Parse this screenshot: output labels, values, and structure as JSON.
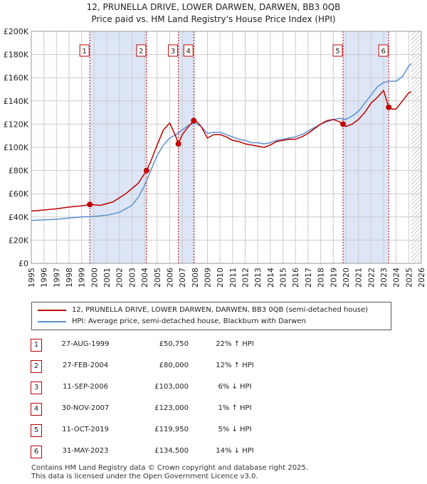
{
  "title_line1": "12, PRUNELLA DRIVE, LOWER DARWEN, DARWEN, BB3 0QB",
  "title_line2": "Price paid vs. HM Land Registry's House Price Index (HPI)",
  "colors": {
    "property": "#c00000",
    "hpi": "#5b8fd0",
    "shade": "#dde6f6",
    "grid": "#cccccc"
  },
  "legend": {
    "property": "12, PRUNELLA DRIVE, LOWER DARWEN, DARWEN, BB3 0QB (semi-detached house)",
    "hpi": "HPI: Average price, semi-detached house, Blackburn with Darwen"
  },
  "transactions": [
    {
      "n": "1",
      "date": "27-AUG-1999",
      "price": "£50,750",
      "hpi": "22% ↑ HPI"
    },
    {
      "n": "2",
      "date": "27-FEB-2004",
      "price": "£80,000",
      "hpi": "12% ↑ HPI"
    },
    {
      "n": "3",
      "date": "11-SEP-2006",
      "price": "£103,000",
      "hpi": "6% ↓ HPI"
    },
    {
      "n": "4",
      "date": "30-NOV-2007",
      "price": "£123,000",
      "hpi": "1% ↑ HPI"
    },
    {
      "n": "5",
      "date": "11-OCT-2019",
      "price": "£119,950",
      "hpi": "5% ↓ HPI"
    },
    {
      "n": "6",
      "date": "31-MAY-2023",
      "price": "£134,500",
      "hpi": "14% ↓ HPI"
    }
  ],
  "footer": {
    "line1": "Contains HM Land Registry data © Crown copyright and database right 2025.",
    "line2": "This data is licensed under the Open Government Licence v3.0."
  },
  "chart_data": {
    "type": "line",
    "title": "12, PRUNELLA DRIVE, LOWER DARWEN, DARWEN, BB3 0QB — Price paid vs. HM Land Registry's House Price Index (HPI)",
    "xlim": [
      1995,
      2026
    ],
    "ylim": [
      0,
      200000
    ],
    "x_ticks": [
      1995,
      1996,
      1997,
      1998,
      1999,
      2000,
      2001,
      2002,
      2003,
      2004,
      2005,
      2006,
      2007,
      2008,
      2009,
      2010,
      2011,
      2012,
      2013,
      2014,
      2015,
      2016,
      2017,
      2018,
      2019,
      2020,
      2021,
      2022,
      2023,
      2024,
      2025,
      2026
    ],
    "y_ticks": [
      {
        "v": 0,
        "label": "£0"
      },
      {
        "v": 20000,
        "label": "£20K"
      },
      {
        "v": 40000,
        "label": "£40K"
      },
      {
        "v": 60000,
        "label": "£60K"
      },
      {
        "v": 80000,
        "label": "£80K"
      },
      {
        "v": 100000,
        "label": "£100K"
      },
      {
        "v": 120000,
        "label": "£120K"
      },
      {
        "v": 140000,
        "label": "£140K"
      },
      {
        "v": 160000,
        "label": "£160K"
      },
      {
        "v": 180000,
        "label": "£180K"
      },
      {
        "v": 200000,
        "label": "£200K"
      }
    ],
    "shaded_periods": [
      [
        1999.65,
        2004.16
      ],
      [
        2006.69,
        2007.91
      ],
      [
        2019.78,
        2023.41
      ]
    ],
    "hatched_from": 2025.2,
    "sales": [
      {
        "n": "1",
        "x": 1999.65,
        "y": 50750
      },
      {
        "n": "2",
        "x": 2004.16,
        "y": 80000
      },
      {
        "n": "3",
        "x": 2006.69,
        "y": 103000
      },
      {
        "n": "4",
        "x": 2007.91,
        "y": 123000
      },
      {
        "n": "5",
        "x": 2019.78,
        "y": 119950
      },
      {
        "n": "6",
        "x": 2023.41,
        "y": 134500
      }
    ],
    "series": [
      {
        "name": "12, PRUNELLA DRIVE, LOWER DARWEN, DARWEN, BB3 0QB (semi-detached house)",
        "x": [
          1995.0,
          1996.0,
          1997.0,
          1998.0,
          1999.0,
          1999.65,
          2000.5,
          2001.5,
          2002.5,
          2003.5,
          2004.16,
          2004.5,
          2005.0,
          2005.5,
          2006.0,
          2006.5,
          2006.69,
          2007.0,
          2007.5,
          2007.91,
          2008.0,
          2008.5,
          2009.0,
          2009.5,
          2010.0,
          2010.5,
          2011.0,
          2011.5,
          2012.0,
          2012.5,
          2013.0,
          2013.5,
          2014.0,
          2014.5,
          2015.0,
          2015.5,
          2016.0,
          2016.5,
          2017.0,
          2017.5,
          2018.0,
          2018.5,
          2019.0,
          2019.5,
          2019.78,
          2020.0,
          2020.5,
          2021.0,
          2021.5,
          2022.0,
          2022.5,
          2023.0,
          2023.41,
          2023.7,
          2024.0,
          2024.5,
          2025.0,
          2025.2
        ],
        "values": [
          45000,
          46000,
          47000,
          48500,
          49500,
          50750,
          50000,
          53000,
          60000,
          69000,
          80000,
          88000,
          102000,
          115000,
          121000,
          109000,
          103000,
          111000,
          118000,
          123000,
          124000,
          118000,
          108000,
          111000,
          111000,
          109000,
          106000,
          105000,
          103000,
          102000,
          101000,
          100000,
          102000,
          105000,
          106000,
          107000,
          107000,
          109000,
          112000,
          116000,
          120000,
          123000,
          124000,
          122000,
          119950,
          118000,
          120000,
          124000,
          130000,
          138000,
          143000,
          149000,
          134500,
          133000,
          133000,
          140000,
          147000,
          148000
        ]
      },
      {
        "name": "HPI: Average price, semi-detached house, Blackburn with Darwen",
        "x": [
          1995.0,
          1996.0,
          1997.0,
          1998.0,
          1999.0,
          2000.0,
          2001.0,
          2002.0,
          2003.0,
          2003.5,
          2004.0,
          2004.5,
          2005.0,
          2005.5,
          2006.0,
          2006.5,
          2007.0,
          2007.5,
          2008.0,
          2008.5,
          2009.0,
          2009.5,
          2010.0,
          2010.5,
          2011.0,
          2011.5,
          2012.0,
          2012.5,
          2013.0,
          2013.5,
          2014.0,
          2014.5,
          2015.0,
          2015.5,
          2016.0,
          2016.5,
          2017.0,
          2017.5,
          2018.0,
          2018.5,
          2019.0,
          2019.5,
          2020.0,
          2020.5,
          2021.0,
          2021.5,
          2022.0,
          2022.5,
          2023.0,
          2023.5,
          2024.0,
          2024.5,
          2025.0,
          2025.2
        ],
        "values": [
          37000,
          37500,
          38000,
          39000,
          40000,
          40500,
          41500,
          44000,
          50000,
          57000,
          67000,
          80000,
          93000,
          102000,
          108000,
          111000,
          115000,
          119000,
          121000,
          118000,
          112000,
          113000,
          113000,
          111000,
          109000,
          107000,
          106000,
          104000,
          104000,
          103000,
          104000,
          106000,
          107000,
          108000,
          109000,
          111000,
          114000,
          117000,
          120000,
          122000,
          124000,
          125000,
          124000,
          127000,
          131000,
          138000,
          145000,
          152000,
          156000,
          157000,
          157000,
          161000,
          170000,
          172000
        ]
      }
    ]
  }
}
